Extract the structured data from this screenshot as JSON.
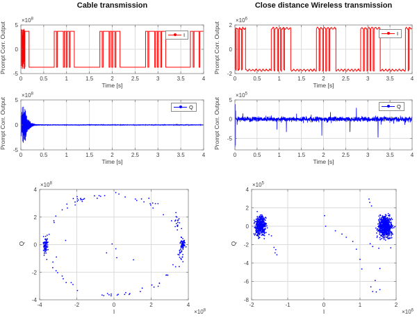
{
  "figure": {
    "background": "#ffffff",
    "grid_color": "#dadada",
    "axis_color": "#9a9a9a",
    "tick_text_color": "#3d3d3d"
  },
  "chart_data": [
    {
      "id": "cable-i-time",
      "type": "line",
      "title": "Cable transmission",
      "xlabel": "Time [s]",
      "ylabel": "Prompt Corr. Output",
      "legend": {
        "label": "I",
        "color": "#ff0000"
      },
      "color": "#ff0000",
      "xlim": [
        0,
        4
      ],
      "ylim": [
        -5,
        5
      ],
      "x_ticks": [
        0,
        0.5,
        1,
        1.5,
        2,
        2.5,
        3,
        3.5,
        4
      ],
      "y_ticks": [
        -5,
        0,
        5
      ],
      "y_exponent": 8,
      "x_exponent": null,
      "grid": true,
      "units_note": "y values in units of 10^8",
      "signal": {
        "kind": "pulse",
        "high": 3.7,
        "low": -3.7,
        "initial": -1,
        "ripple": 0,
        "ripple_freq": 13,
        "transient": {
          "t0": 0,
          "t1": 0.09,
          "amp": 4.2
        },
        "edges": [
          [
            0.09,
            1
          ],
          [
            0.18,
            -1
          ],
          [
            0.73,
            1
          ],
          [
            0.78,
            -1
          ],
          [
            0.8,
            1
          ],
          [
            0.93,
            -1
          ],
          [
            0.95,
            1
          ],
          [
            0.99,
            -1
          ],
          [
            1.01,
            1
          ],
          [
            1.06,
            -1
          ],
          [
            1.08,
            1
          ],
          [
            1.17,
            -1
          ],
          [
            1.73,
            1
          ],
          [
            1.78,
            -1
          ],
          [
            1.8,
            1
          ],
          [
            1.93,
            -1
          ],
          [
            1.95,
            1
          ],
          [
            1.99,
            -1
          ],
          [
            2.01,
            1
          ],
          [
            2.06,
            -1
          ],
          [
            2.08,
            1
          ],
          [
            2.17,
            -1
          ],
          [
            2.73,
            1
          ],
          [
            2.78,
            -1
          ],
          [
            2.8,
            1
          ],
          [
            2.93,
            -1
          ],
          [
            2.95,
            1
          ],
          [
            2.99,
            -1
          ],
          [
            3.01,
            1
          ],
          [
            3.06,
            -1
          ],
          [
            3.08,
            1
          ],
          [
            3.17,
            -1
          ],
          [
            3.71,
            1
          ],
          [
            3.77,
            -1
          ],
          [
            3.79,
            1
          ],
          [
            3.9,
            -1
          ],
          [
            3.92,
            1
          ]
        ]
      }
    },
    {
      "id": "wireless-i-time",
      "type": "line",
      "title": "Close distance Wireless transmission",
      "xlabel": "Time [s]",
      "ylabel": "Prompt Corr. Output",
      "legend": {
        "label": "I",
        "color": "#ff0000"
      },
      "color": "#ff0000",
      "xlim": [
        0,
        4
      ],
      "ylim": [
        -2,
        2
      ],
      "x_ticks": [
        0,
        0.5,
        1,
        1.5,
        2,
        2.5,
        3,
        3.5,
        4
      ],
      "y_ticks": [
        -2,
        0,
        2
      ],
      "y_exponent": 6,
      "x_exponent": null,
      "grid": true,
      "units_note": "y values in units of 10^6",
      "signal": {
        "kind": "pulse",
        "high": 1.72,
        "low": -1.72,
        "initial": -1,
        "ripple": 0.07,
        "ripple_freq": 13,
        "transient": {
          "t0": 0,
          "t1": 0.03,
          "amp": 1.8
        },
        "edges": [
          [
            0.02,
            1
          ],
          [
            0.07,
            -1
          ],
          [
            0.1,
            1
          ],
          [
            0.15,
            -1
          ],
          [
            0.17,
            1
          ],
          [
            0.24,
            -1
          ],
          [
            0.82,
            1
          ],
          [
            0.88,
            -1
          ],
          [
            0.9,
            1
          ],
          [
            0.96,
            -1
          ],
          [
            0.98,
            1
          ],
          [
            1.03,
            -1
          ],
          [
            1.05,
            1
          ],
          [
            1.1,
            -1
          ],
          [
            1.12,
            1
          ],
          [
            1.26,
            -1
          ],
          [
            1.84,
            1
          ],
          [
            1.9,
            -1
          ],
          [
            1.92,
            1
          ],
          [
            1.98,
            -1
          ],
          [
            2.0,
            1
          ],
          [
            2.05,
            -1
          ],
          [
            2.07,
            1
          ],
          [
            2.12,
            -1
          ],
          [
            2.14,
            1
          ],
          [
            2.28,
            -1
          ],
          [
            2.84,
            1
          ],
          [
            2.9,
            -1
          ],
          [
            2.92,
            1
          ],
          [
            2.98,
            -1
          ],
          [
            3.0,
            1
          ],
          [
            3.05,
            -1
          ],
          [
            3.07,
            1
          ],
          [
            3.12,
            -1
          ],
          [
            3.14,
            1
          ],
          [
            3.28,
            -1
          ],
          [
            3.85,
            1
          ],
          [
            3.91,
            -1
          ],
          [
            3.93,
            1
          ]
        ]
      }
    },
    {
      "id": "cable-q-time",
      "type": "line",
      "title": "",
      "xlabel": "Time [s]",
      "ylabel": "Prompt Corr. Output",
      "legend": {
        "label": "Q",
        "color": "#0000ff"
      },
      "color": "#0000ff",
      "xlim": [
        0,
        4
      ],
      "ylim": [
        -5,
        5
      ],
      "x_ticks": [
        0,
        0.5,
        1,
        1.5,
        2,
        2.5,
        3,
        3.5,
        4
      ],
      "y_ticks": [
        -5,
        0,
        5
      ],
      "y_exponent": 8,
      "x_exponent": null,
      "grid": true,
      "units_note": "y values in units of 10^8; decaying oscillation then ~0",
      "signal": {
        "kind": "decay",
        "envelope": [
          [
            0,
            3.6
          ],
          [
            0.06,
            3.9
          ],
          [
            0.1,
            3.2
          ],
          [
            0.13,
            2.0
          ],
          [
            0.16,
            1.2
          ],
          [
            0.2,
            0.75
          ],
          [
            0.24,
            0.45
          ],
          [
            0.28,
            0.3
          ],
          [
            0.33,
            0.18
          ],
          [
            0.4,
            0.12
          ],
          [
            4,
            0.11
          ]
        ]
      }
    },
    {
      "id": "wireless-q-time",
      "type": "line",
      "title": "",
      "xlabel": "Time [s]",
      "ylabel": "Prompt Corr. Output",
      "legend": {
        "label": "Q",
        "color": "#0000ff"
      },
      "color": "#0000ff",
      "xlim": [
        0,
        4
      ],
      "ylim": [
        -8,
        5
      ],
      "x_ticks": [
        0,
        0.5,
        1,
        1.5,
        2,
        2.5,
        3,
        3.5,
        4
      ],
      "y_ticks": [
        -5,
        0,
        5
      ],
      "y_exponent": 5,
      "x_exponent": null,
      "grid": true,
      "units_note": "y values in units of 10^5; zero-mean noise band",
      "signal": {
        "kind": "noise",
        "sd": 0.32,
        "spike_p": 0.02,
        "points": [
          [
            0.004,
            2.6
          ],
          [
            0.006,
            -7.3
          ],
          [
            0.009,
            3.9
          ],
          [
            0.013,
            -6.8
          ],
          [
            0.018,
            2.2
          ],
          [
            0.95,
            -2.7
          ]
        ]
      }
    },
    {
      "id": "cable-constellation",
      "type": "scatter",
      "title": "",
      "xlabel": "I",
      "ylabel": "Q",
      "color": "#0000ff",
      "xlim": [
        -4,
        4
      ],
      "ylim": [
        -4,
        4
      ],
      "x_ticks": [
        -4,
        -2,
        0,
        2,
        4
      ],
      "y_ticks": [
        -4,
        -2,
        0,
        2,
        4
      ],
      "y_exponent": 8,
      "x_exponent": 8,
      "grid": true,
      "units_note": "both axes in units of 10^8; BPSK clusters at ±3.7e8 with ring of transition points",
      "scatter": {
        "clusters": [
          {
            "cx": -3.68,
            "cy": -0.05,
            "sx": 0.05,
            "sy": 0.3,
            "n": 75
          },
          {
            "cx": 3.7,
            "cy": 0.0,
            "sx": 0.06,
            "sy": 0.2,
            "n": 60
          },
          {
            "cx": 3.58,
            "cy": -0.75,
            "sx": 0.07,
            "sy": 0.3,
            "n": 15
          },
          {
            "cx": 3.42,
            "cy": 1.8,
            "sx": 0.08,
            "sy": 0.22,
            "n": 13
          },
          {
            "cx": -1.75,
            "cy": 3.25,
            "sx": 0.22,
            "sy": 0.12,
            "n": 9
          }
        ],
        "ring": {
          "r": 3.68,
          "jitter": 0.1,
          "n": 80
        },
        "points": [
          [
            -0.1,
            0.05
          ],
          [
            0.1,
            -0.3
          ],
          [
            -0.4,
            -0.6
          ],
          [
            0.15,
            -0.95
          ],
          [
            1.05,
            -1.1
          ],
          [
            -0.5,
            3.55
          ],
          [
            0.6,
            3.45
          ],
          [
            1.15,
            3.3
          ],
          [
            2.1,
            2.65
          ],
          [
            -2.6,
            0.3
          ],
          [
            -0.55,
            -3.7
          ],
          [
            -3.1,
            -0.9
          ]
        ]
      }
    },
    {
      "id": "wireless-constellation",
      "type": "scatter",
      "title": "",
      "xlabel": "I",
      "ylabel": "Q",
      "color": "#0000ff",
      "xlim": [
        -2,
        2
      ],
      "ylim": [
        -8,
        4
      ],
      "x_ticks": [
        -2,
        -1,
        0,
        1,
        2
      ],
      "y_ticks": [
        -8,
        -6,
        -4,
        -2,
        0,
        2,
        4
      ],
      "y_exponent": 5,
      "x_exponent": 6,
      "grid": true,
      "units_note": "x in units of 10^6, y in units of 10^5; two dense clusters near ±1.7e6",
      "scatter": {
        "clusters": [
          {
            "cx": -1.76,
            "cy": 0.05,
            "sx": 0.07,
            "sy": 0.5,
            "n": 420
          },
          {
            "cx": 1.7,
            "cy": -0.05,
            "sx": 0.09,
            "sy": 0.55,
            "n": 650
          }
        ],
        "ring": null,
        "points": [
          [
            -1.52,
            -0.9
          ],
          [
            -1.45,
            -1.05
          ],
          [
            -1.38,
            -2.3
          ],
          [
            -1.33,
            -2.55
          ],
          [
            -1.3,
            -3.1
          ],
          [
            -1.35,
            -2.9
          ],
          [
            0.02,
            1.15
          ],
          [
            0.05,
            0.0
          ],
          [
            0.32,
            -0.5
          ],
          [
            0.5,
            -0.85
          ],
          [
            0.62,
            -1.2
          ],
          [
            0.8,
            -1.65
          ],
          [
            0.9,
            -2.5
          ],
          [
            1.0,
            -3.6
          ],
          [
            1.05,
            -4.65
          ],
          [
            1.25,
            2.95
          ],
          [
            1.27,
            2.6
          ],
          [
            1.32,
            2.2
          ],
          [
            1.3,
            -6.6
          ],
          [
            1.35,
            -7.1
          ],
          [
            1.45,
            -7.15
          ],
          [
            1.55,
            -6.9
          ],
          [
            1.42,
            -5.9
          ],
          [
            1.52,
            -2.4
          ],
          [
            1.35,
            -2.2
          ],
          [
            1.28,
            -1.9
          ],
          [
            1.85,
            -2.35
          ],
          [
            1.55,
            -4.6
          ]
        ]
      }
    }
  ]
}
